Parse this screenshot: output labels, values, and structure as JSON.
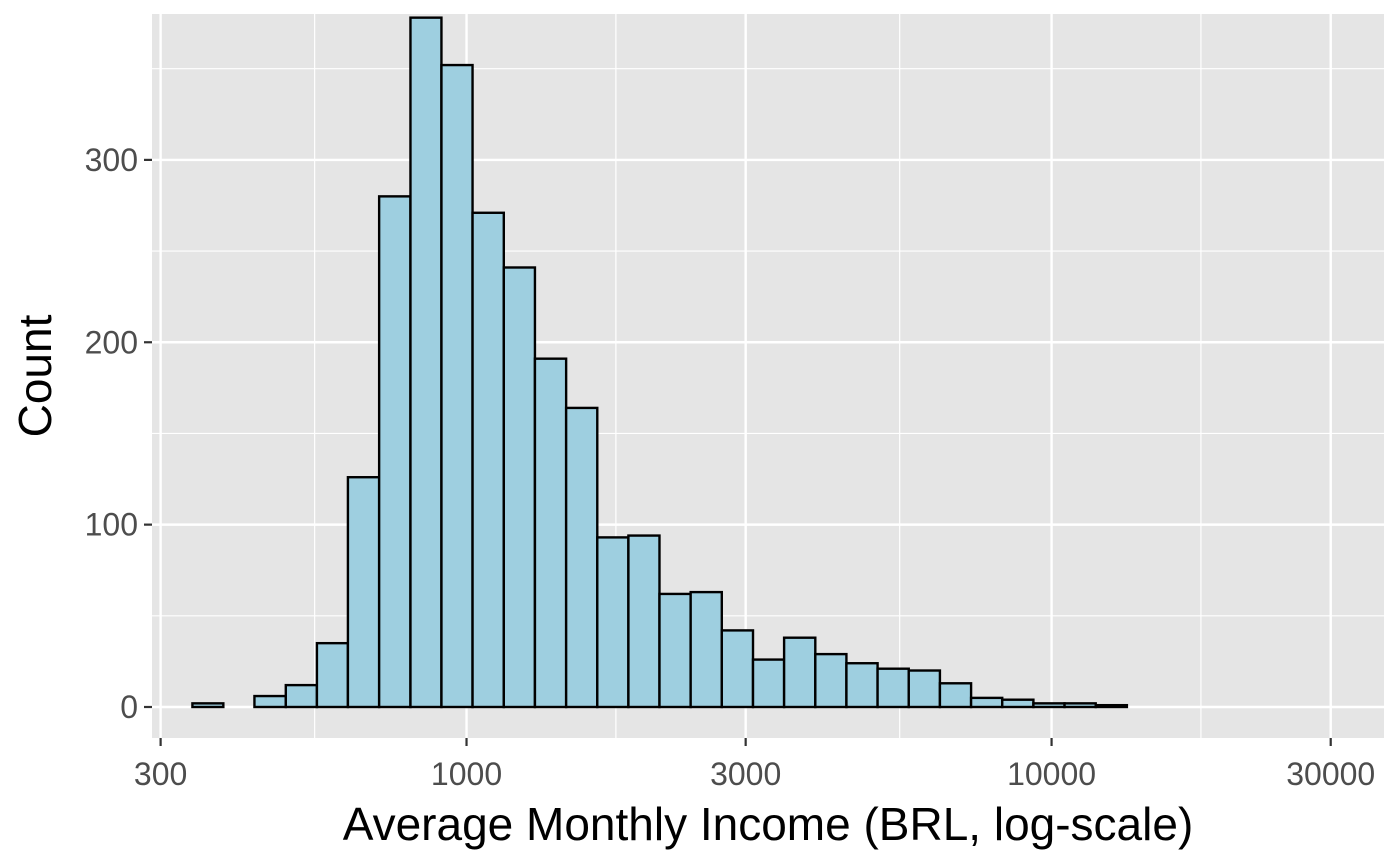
{
  "chart_data": {
    "type": "bar",
    "title": "",
    "xlabel": "Average Monthly Income (BRL, log-scale)",
    "ylabel": "Count",
    "x_scale": "log10",
    "xlim": [
      290,
      37000
    ],
    "ylim": [
      -17,
      380
    ],
    "x_ticks": [
      {
        "value": 300,
        "label": "300"
      },
      {
        "value": 1000,
        "label": "1000"
      },
      {
        "value": 3000,
        "label": "3000"
      },
      {
        "value": 10000,
        "label": "10000"
      },
      {
        "value": 30000,
        "label": "30000"
      }
    ],
    "x_minor_gridlines": [
      550,
      1800,
      5500,
      18000
    ],
    "y_ticks": [
      {
        "value": 0,
        "label": "0"
      },
      {
        "value": 100,
        "label": "100"
      },
      {
        "value": 200,
        "label": "200"
      },
      {
        "value": 300,
        "label": "300"
      }
    ],
    "y_minor_gridlines": [
      50,
      150,
      250,
      350
    ],
    "grid": true,
    "colors": {
      "panel_background": "#e5e5e5",
      "gridline": "#ffffff",
      "bar_fill": "#9ecfe0",
      "bar_stroke": "#000000",
      "tick_text": "#4d4d4d",
      "tick_mark": "#333333",
      "title_text": "#000000"
    },
    "bins": [
      {
        "start": 340,
        "end": 384,
        "count": 2
      },
      {
        "start": 384,
        "end": 434,
        "count": 0
      },
      {
        "start": 434,
        "end": 491,
        "count": 6
      },
      {
        "start": 491,
        "end": 555,
        "count": 12
      },
      {
        "start": 555,
        "end": 627,
        "count": 35
      },
      {
        "start": 627,
        "end": 709,
        "count": 126
      },
      {
        "start": 709,
        "end": 802,
        "count": 280
      },
      {
        "start": 802,
        "end": 906,
        "count": 378
      },
      {
        "start": 906,
        "end": 1024,
        "count": 352
      },
      {
        "start": 1024,
        "end": 1158,
        "count": 271
      },
      {
        "start": 1158,
        "end": 1309,
        "count": 241
      },
      {
        "start": 1309,
        "end": 1480,
        "count": 191
      },
      {
        "start": 1480,
        "end": 1673,
        "count": 164
      },
      {
        "start": 1673,
        "end": 1891,
        "count": 93
      },
      {
        "start": 1891,
        "end": 2137,
        "count": 94
      },
      {
        "start": 2137,
        "end": 2416,
        "count": 62
      },
      {
        "start": 2416,
        "end": 2731,
        "count": 63
      },
      {
        "start": 2731,
        "end": 3088,
        "count": 42
      },
      {
        "start": 3088,
        "end": 3490,
        "count": 26
      },
      {
        "start": 3490,
        "end": 3946,
        "count": 38
      },
      {
        "start": 3946,
        "end": 4460,
        "count": 29
      },
      {
        "start": 4460,
        "end": 5042,
        "count": 24
      },
      {
        "start": 5042,
        "end": 5700,
        "count": 21
      },
      {
        "start": 5700,
        "end": 6444,
        "count": 20
      },
      {
        "start": 6444,
        "end": 7285,
        "count": 13
      },
      {
        "start": 7285,
        "end": 8235,
        "count": 5
      },
      {
        "start": 8235,
        "end": 9310,
        "count": 4
      },
      {
        "start": 9310,
        "end": 10524,
        "count": 2
      },
      {
        "start": 10524,
        "end": 11897,
        "count": 2
      },
      {
        "start": 11897,
        "end": 13450,
        "count": 1
      }
    ]
  }
}
